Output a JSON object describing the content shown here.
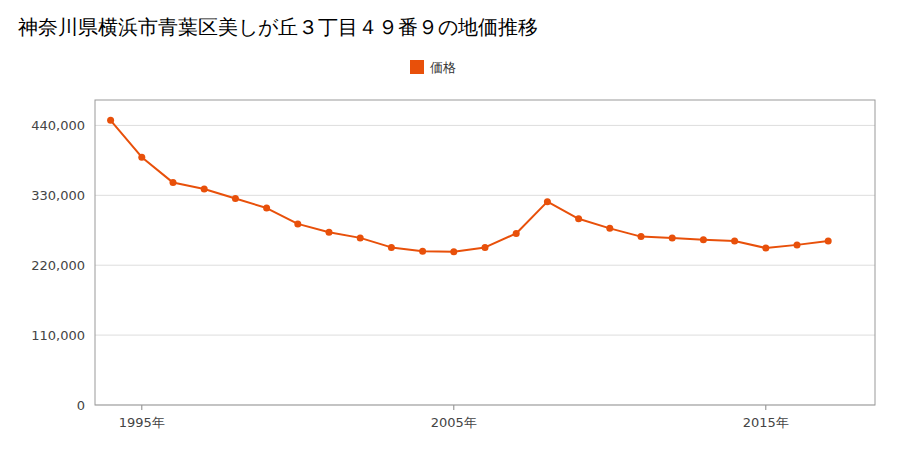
{
  "chart_data": {
    "type": "line",
    "title": "神奈川県横浜市青葉区美しが丘３丁目４９番９の地価推移",
    "x": [
      1994,
      1995,
      1996,
      1997,
      1998,
      1999,
      2000,
      2001,
      2002,
      2003,
      2004,
      2005,
      2006,
      2007,
      2008,
      2009,
      2010,
      2011,
      2012,
      2013,
      2014,
      2015,
      2016,
      2017
    ],
    "series": [
      {
        "name": "価格",
        "color": "#e8500a",
        "marker": "circle",
        "values": [
          448000,
          390000,
          350000,
          340000,
          325000,
          310000,
          285000,
          272000,
          263000,
          248000,
          242000,
          241000,
          248000,
          270000,
          320000,
          293000,
          278000,
          265000,
          263000,
          260000,
          258000,
          247000,
          252000,
          258000
        ]
      }
    ],
    "xlim": [
      1993.5,
      2018.5
    ],
    "xticks": [
      {
        "value": 1995,
        "label": "1995年"
      },
      {
        "value": 2005,
        "label": "2005年"
      },
      {
        "value": 2015,
        "label": "2015年"
      }
    ],
    "ylim": [
      0,
      480000
    ],
    "yticks": [
      0,
      {
        "value": 110000,
        "label": "110,000"
      },
      {
        "value": 220000,
        "label": "220,000"
      },
      {
        "value": 330000,
        "label": "330,000"
      },
      {
        "value": 440000,
        "label": "440,000"
      }
    ],
    "grid": "y",
    "legend": "top"
  }
}
